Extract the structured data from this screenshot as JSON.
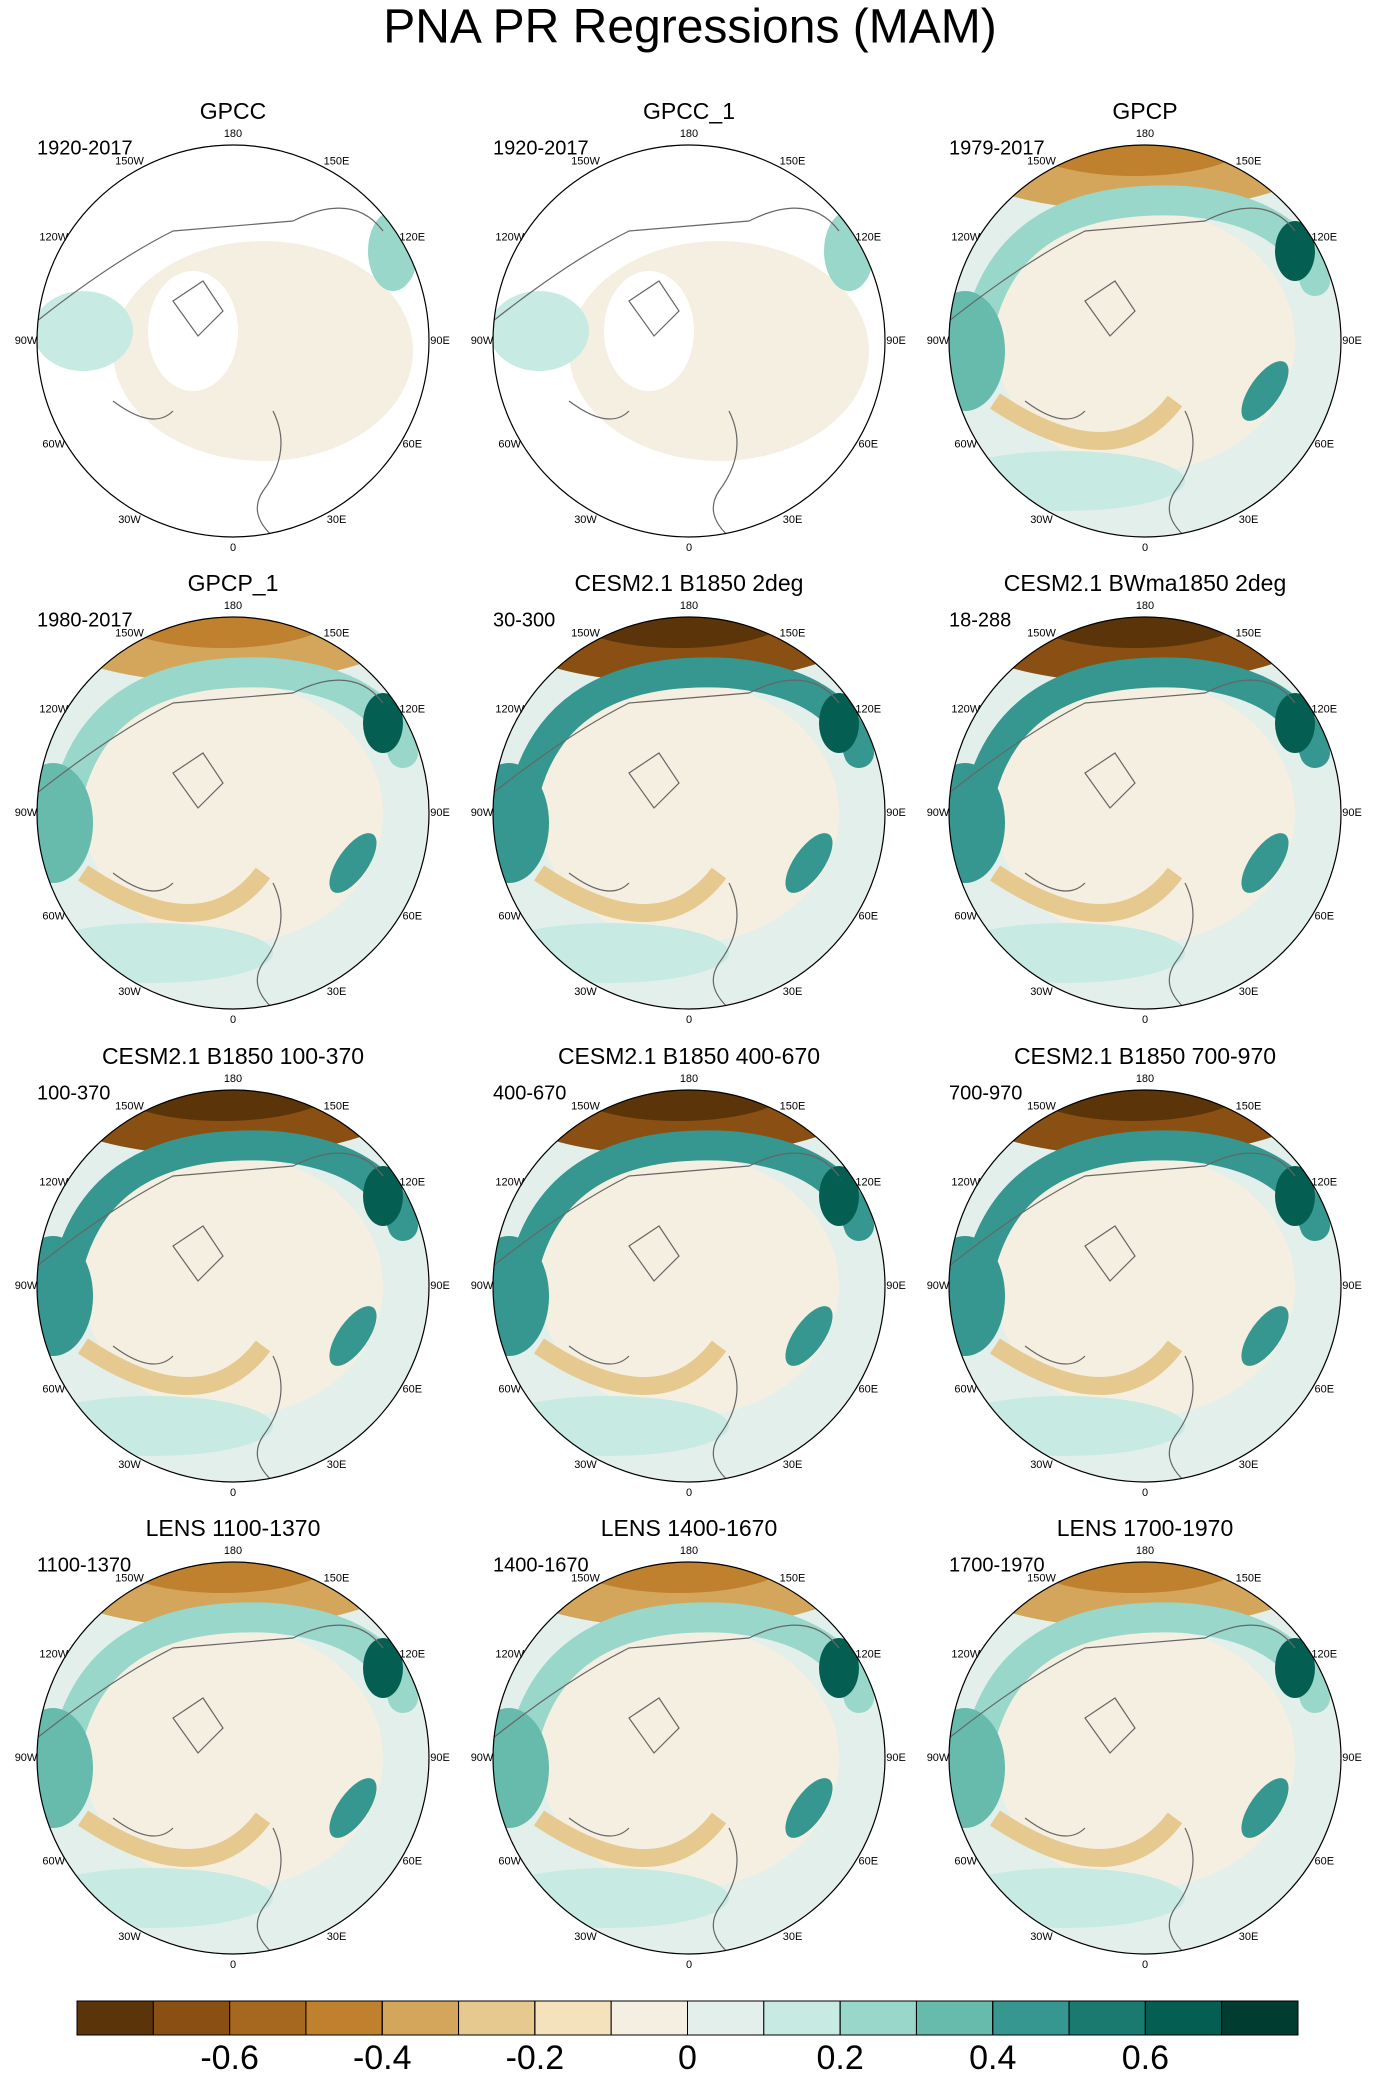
{
  "title": "PNA PR Regressions (MAM)",
  "lon_labels": [
    "180",
    "150E",
    "120E",
    "90E",
    "60E",
    "30E",
    "0",
    "30W",
    "60W",
    "90W",
    "120W",
    "150W"
  ],
  "panels": [
    {
      "title": "GPCC",
      "period": "1920-2017"
    },
    {
      "title": "GPCC_1",
      "period": "1920-2017"
    },
    {
      "title": "GPCP",
      "period": "1979-2017"
    },
    {
      "title": "GPCP_1",
      "period": "1980-2017"
    },
    {
      "title": "CESM2.1 B1850 2deg",
      "period": "30-300"
    },
    {
      "title": "CESM2.1 BWma1850 2deg",
      "period": "18-288"
    },
    {
      "title": "CESM2.1 B1850 100-370",
      "period": "100-370"
    },
    {
      "title": "CESM2.1 B1850 400-670",
      "period": "400-670"
    },
    {
      "title": "CESM2.1 B1850 700-970",
      "period": "700-970"
    },
    {
      "title": "LENS 1100-1370",
      "period": "1100-1370"
    },
    {
      "title": "LENS 1400-1670",
      "period": "1400-1670"
    },
    {
      "title": "LENS 1700-1970",
      "period": "1700-1970"
    }
  ],
  "colorbar": {
    "lim": [
      -0.8,
      0.8
    ],
    "ticks": [
      -0.6,
      -0.4,
      -0.2,
      0,
      0.2,
      0.4,
      0.6
    ],
    "colors": [
      "#5c3409",
      "#8a4f12",
      "#a6671f",
      "#bf812d",
      "#d3a65c",
      "#e6c98f",
      "#f3e2bb",
      "#f5efe1",
      "#e2efeb",
      "#c7eae2",
      "#98d7c9",
      "#66bbad",
      "#35978f",
      "#1a7a70",
      "#055e52",
      "#003c30"
    ]
  }
}
